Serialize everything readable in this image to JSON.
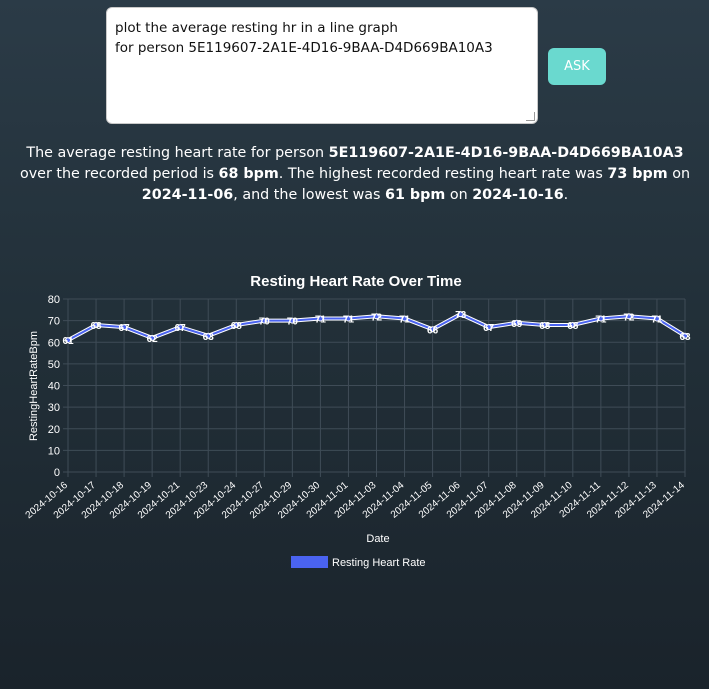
{
  "query": {
    "text": "plot the average resting hr in a line graph\nfor person 5E119607-2A1E-4D16-9BAA-D4D669BA10A3"
  },
  "ask_button_label": "ASK",
  "answer": {
    "p1": "The average resting heart rate for person ",
    "person_id": "5E119607-2A1E-4D16-9BAA-D4D669BA10A3",
    "p2": " over the recorded period is ",
    "avg": "68 bpm",
    "p3": ". The highest recorded resting heart rate was ",
    "max": "73 bpm",
    "p4": " on ",
    "max_date": "2024-11-06",
    "p5": ", and the lowest was ",
    "min": "61 bpm",
    "p6": " on ",
    "min_date": "2024-10-16",
    "p7": "."
  },
  "chart_data": {
    "type": "line",
    "title": "Resting Heart Rate Over Time",
    "xlabel": "Date",
    "ylabel": "RestingHeartRateBpm",
    "ylim": [
      0,
      80
    ],
    "yticks": [
      0,
      10,
      20,
      30,
      40,
      50,
      60,
      70,
      80
    ],
    "categories": [
      "2024-10-16",
      "2024-10-17",
      "2024-10-18",
      "2024-10-19",
      "2024-10-21",
      "2024-10-23",
      "2024-10-24",
      "2024-10-27",
      "2024-10-29",
      "2024-10-30",
      "2024-11-01",
      "2024-11-03",
      "2024-11-04",
      "2024-11-05",
      "2024-11-06",
      "2024-11-07",
      "2024-11-08",
      "2024-11-09",
      "2024-11-10",
      "2024-11-11",
      "2024-11-12",
      "2024-11-13",
      "2024-11-14"
    ],
    "series": [
      {
        "name": "Resting Heart Rate",
        "color": "#4a63f0",
        "values": [
          61,
          68,
          67,
          62,
          67,
          63,
          68,
          70,
          70,
          71,
          71,
          72,
          71,
          66,
          73,
          67,
          69,
          68,
          68,
          71,
          72,
          71,
          63
        ]
      }
    ],
    "grid": true,
    "legend": "bottom",
    "data_labels": true
  }
}
